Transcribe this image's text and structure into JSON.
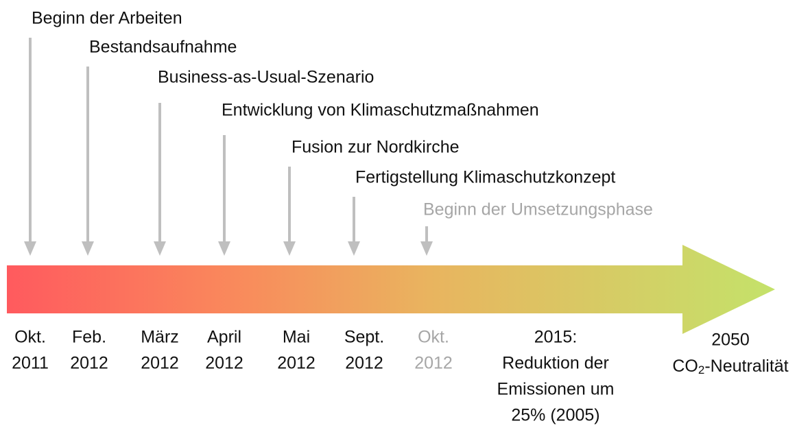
{
  "events": [
    {
      "label": "Beginn der Arbeiten",
      "date": [
        "Okt.",
        "2011"
      ],
      "color": "#111111",
      "arrow": "#bfbfbf"
    },
    {
      "label": "Bestandsaufnahme",
      "date": [
        "Feb.",
        "2012"
      ],
      "color": "#111111",
      "arrow": "#bfbfbf"
    },
    {
      "label": "Business-as-Usual-Szenario",
      "date": [
        "März",
        "2012"
      ],
      "color": "#111111",
      "arrow": "#bfbfbf"
    },
    {
      "label": "Entwicklung von Klimaschutzmaßnahmen",
      "date": [
        "April",
        "2012"
      ],
      "color": "#111111",
      "arrow": "#bfbfbf"
    },
    {
      "label": "Fusion zur Nordkirche",
      "date": [
        "Mai",
        "2012"
      ],
      "color": "#111111",
      "arrow": "#bfbfbf"
    },
    {
      "label": "Fertigstellung Klimaschutzkonzept",
      "date": [
        "Sept.",
        "2012"
      ],
      "color": "#111111",
      "arrow": "#bfbfbf"
    },
    {
      "label": "Beginn der Umsetzungsphase",
      "date": [
        "Okt.",
        "2012"
      ],
      "color": "#a6a6a6",
      "arrow": "#bfbfbf"
    }
  ],
  "goals": [
    {
      "lines": [
        "2015:",
        "Reduktion der",
        "Emissionen um",
        "25% (2005)"
      ]
    },
    {
      "lines": [
        "2050"
      ],
      "formula": {
        "base": "CO",
        "sub": "2",
        "rest": "-Neutralität"
      }
    }
  ]
}
